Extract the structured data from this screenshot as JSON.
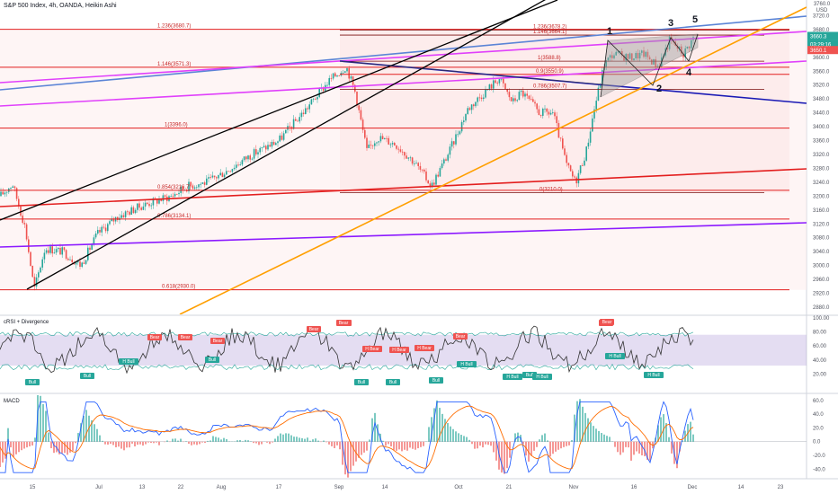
{
  "header": {
    "title": "S&P 500 Index, 4h, OANDA, Heikin Ashi"
  },
  "price_axis": {
    "top_label": "3760.0",
    "currency": "USD",
    "ticks": [
      "3720.0",
      "3680.0",
      "3640.0",
      "3600.0",
      "3560.0",
      "3520.0",
      "3480.0",
      "3440.0",
      "3400.0",
      "3360.0",
      "3320.0",
      "3280.0",
      "3240.0",
      "3200.0",
      "3160.0",
      "3120.0",
      "3080.0",
      "3040.0",
      "3000.0",
      "2960.0",
      "2920.0",
      "2880.0"
    ],
    "last_price": "3660.3",
    "countdown": "03:29:16",
    "marker_price": "3650.1"
  },
  "time_axis": {
    "labels": [
      "15",
      "Jul",
      "13",
      "22",
      "Aug",
      "17",
      "Sep",
      "14",
      "Oct",
      "21",
      "Nov",
      "16",
      "Dec",
      "14",
      "23"
    ]
  },
  "fib_levels": [
    {
      "label": "1.236(3680.7)"
    },
    {
      "label": "1.236(3678.2)"
    },
    {
      "label": "1.146(3664.1)"
    },
    {
      "label": "1.146(3571.3)"
    },
    {
      "label": "1(3588.8)"
    },
    {
      "label": "0.9(3550.9)"
    },
    {
      "label": "0.786(3507.7)"
    },
    {
      "label": "1(3396.0)"
    },
    {
      "label": "0.854(3216.7)"
    },
    {
      "label": "0(3210.0)"
    },
    {
      "label": "0.786(3134.1)"
    },
    {
      "label": "0.618(2930.0)"
    }
  ],
  "wave_labels": [
    "1",
    "2",
    "3",
    "4",
    "5"
  ],
  "rsi_panel": {
    "title": "cRSI + Divergence",
    "ticks": [
      "100.00",
      "80.00",
      "60.00",
      "40.00",
      "20.00"
    ],
    "signals": [
      "Bear",
      "Bear",
      "Bear",
      "Bear",
      "Bear",
      "Bear",
      "Bear",
      "Bear",
      "Bear",
      "H Bear",
      "H Bear",
      "H Bear",
      "Bull",
      "Bull",
      "Bull",
      "H Bull",
      "H Bull",
      "H Bull",
      "H Bull",
      "Bull",
      "Bull",
      "Bull",
      "Bull",
      "H Bull",
      "H Bull"
    ]
  },
  "macd_panel": {
    "title": "MACD",
    "ticks": [
      "60.0",
      "40.0",
      "20.0",
      "0.0",
      "-20.0",
      "-40.0"
    ]
  },
  "colors": {
    "red": "#e31f1f",
    "magenta": "#e040fb",
    "blue": "#5b84d6",
    "navy": "#1a1ab5",
    "orange": "#ff9f00",
    "purple": "#8c1aff",
    "black": "#000000",
    "bull_green": "#26a69a",
    "bear_red": "#ef5350",
    "macd_blue": "#2962ff",
    "macd_orange": "#ff6d00"
  },
  "chart_data": {
    "type": "candlestick",
    "symbol": "S&P 500 Index",
    "interval": "4h",
    "source": "OANDA",
    "candle_style": "Heikin Ashi",
    "y_range": [
      2880,
      3760
    ],
    "x_labels": [
      "15",
      "Jul",
      "13",
      "22",
      "Aug",
      "17",
      "Sep",
      "14",
      "Oct",
      "21",
      "Nov",
      "16",
      "Dec",
      "14",
      "23"
    ],
    "close_path": [
      [
        "15",
        3200
      ],
      [
        "Jul",
        3080
      ],
      [
        "13",
        3160
      ],
      [
        "22",
        3240
      ],
      [
        "Aug",
        3250
      ],
      [
        "17",
        3360
      ],
      [
        "Sep",
        3560
      ],
      [
        "14",
        3350
      ],
      [
        "Oct",
        3370
      ],
      [
        "21",
        3500
      ],
      [
        "Nov",
        3290
      ],
      [
        "16",
        3620
      ],
      [
        "Dec",
        3660
      ]
    ],
    "last_price": 3660.3,
    "rsi": {
      "name": "cRSI + Divergence",
      "y_range": [
        0,
        100
      ],
      "band": [
        32,
        76
      ]
    },
    "macd": {
      "name": "MACD",
      "y_range": [
        -50,
        65
      ]
    }
  }
}
